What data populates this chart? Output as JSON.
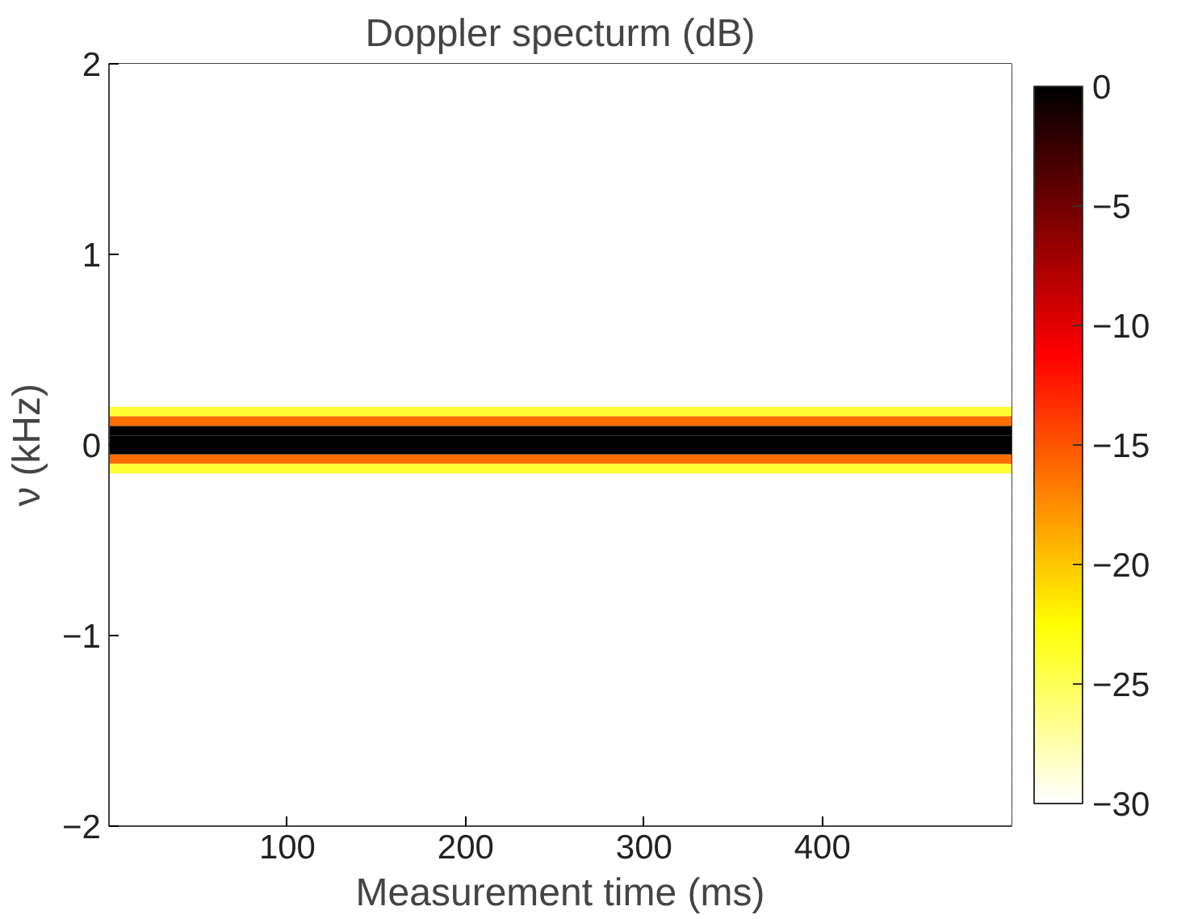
{
  "chart_data": {
    "type": "heatmap",
    "title": "Doppler specturm (dB)",
    "xlabel": "Measurement time (ms)",
    "ylabel": "ν (kHz)",
    "cells": [
      [
        -30
      ],
      [
        -30
      ],
      [
        -30
      ],
      [
        -30
      ],
      [
        -30
      ],
      [
        -30
      ],
      [
        -30
      ],
      [
        -30
      ],
      [
        -30
      ],
      [
        -30
      ],
      [
        -30
      ],
      [
        -30
      ],
      [
        -30
      ],
      [
        -30
      ],
      [
        -30
      ],
      [
        -30
      ],
      [
        -30
      ],
      [
        -30
      ],
      [
        -30
      ],
      [
        -30
      ],
      [
        -30
      ],
      [
        -30
      ],
      [
        -30
      ],
      [
        -30
      ],
      [
        -30
      ],
      [
        -30
      ],
      [
        -30
      ],
      [
        -30
      ],
      [
        -30
      ],
      [
        -30
      ],
      [
        -30
      ],
      [
        -30
      ],
      [
        -30
      ],
      [
        -30
      ],
      [
        -30
      ],
      [
        -30
      ],
      [
        -24
      ],
      [
        -16
      ],
      [
        0
      ],
      [
        0
      ],
      [
        0
      ],
      [
        -16
      ],
      [
        -24
      ],
      [
        -30
      ],
      [
        -30
      ],
      [
        -30
      ],
      [
        -30
      ],
      [
        -30
      ],
      [
        -30
      ],
      [
        -30
      ],
      [
        -30
      ],
      [
        -30
      ],
      [
        -30
      ],
      [
        -30
      ],
      [
        -30
      ],
      [
        -30
      ],
      [
        -30
      ],
      [
        -30
      ],
      [
        -30
      ],
      [
        -30
      ],
      [
        -30
      ],
      [
        -30
      ],
      [
        -30
      ],
      [
        -30
      ],
      [
        -30
      ],
      [
        -30
      ],
      [
        -30
      ],
      [
        -30
      ],
      [
        -30
      ],
      [
        -30
      ],
      [
        -30
      ],
      [
        -30
      ],
      [
        -30
      ],
      [
        -30
      ],
      [
        -30
      ],
      [
        -30
      ],
      [
        -30
      ],
      [
        -30
      ],
      [
        -30
      ],
      [
        -30
      ]
    ],
    "xlim": [
      0,
      506
    ],
    "xticks": [
      100,
      200,
      300,
      400
    ],
    "ylim": [
      -2,
      2
    ],
    "yticks": [
      {
        "value": -2,
        "label": "−2"
      },
      {
        "value": -1,
        "label": "−1"
      },
      0,
      1,
      2
    ],
    "clim": [
      -30,
      0
    ],
    "cticks": [
      {
        "value": -30,
        "label": "−30"
      },
      {
        "value": -25,
        "label": "−25"
      },
      {
        "value": -20,
        "label": "−20"
      },
      {
        "value": -15,
        "label": "−15"
      },
      {
        "value": -10,
        "label": "−10"
      },
      {
        "value": -5,
        "label": "−5"
      },
      0
    ],
    "grid": false
  }
}
